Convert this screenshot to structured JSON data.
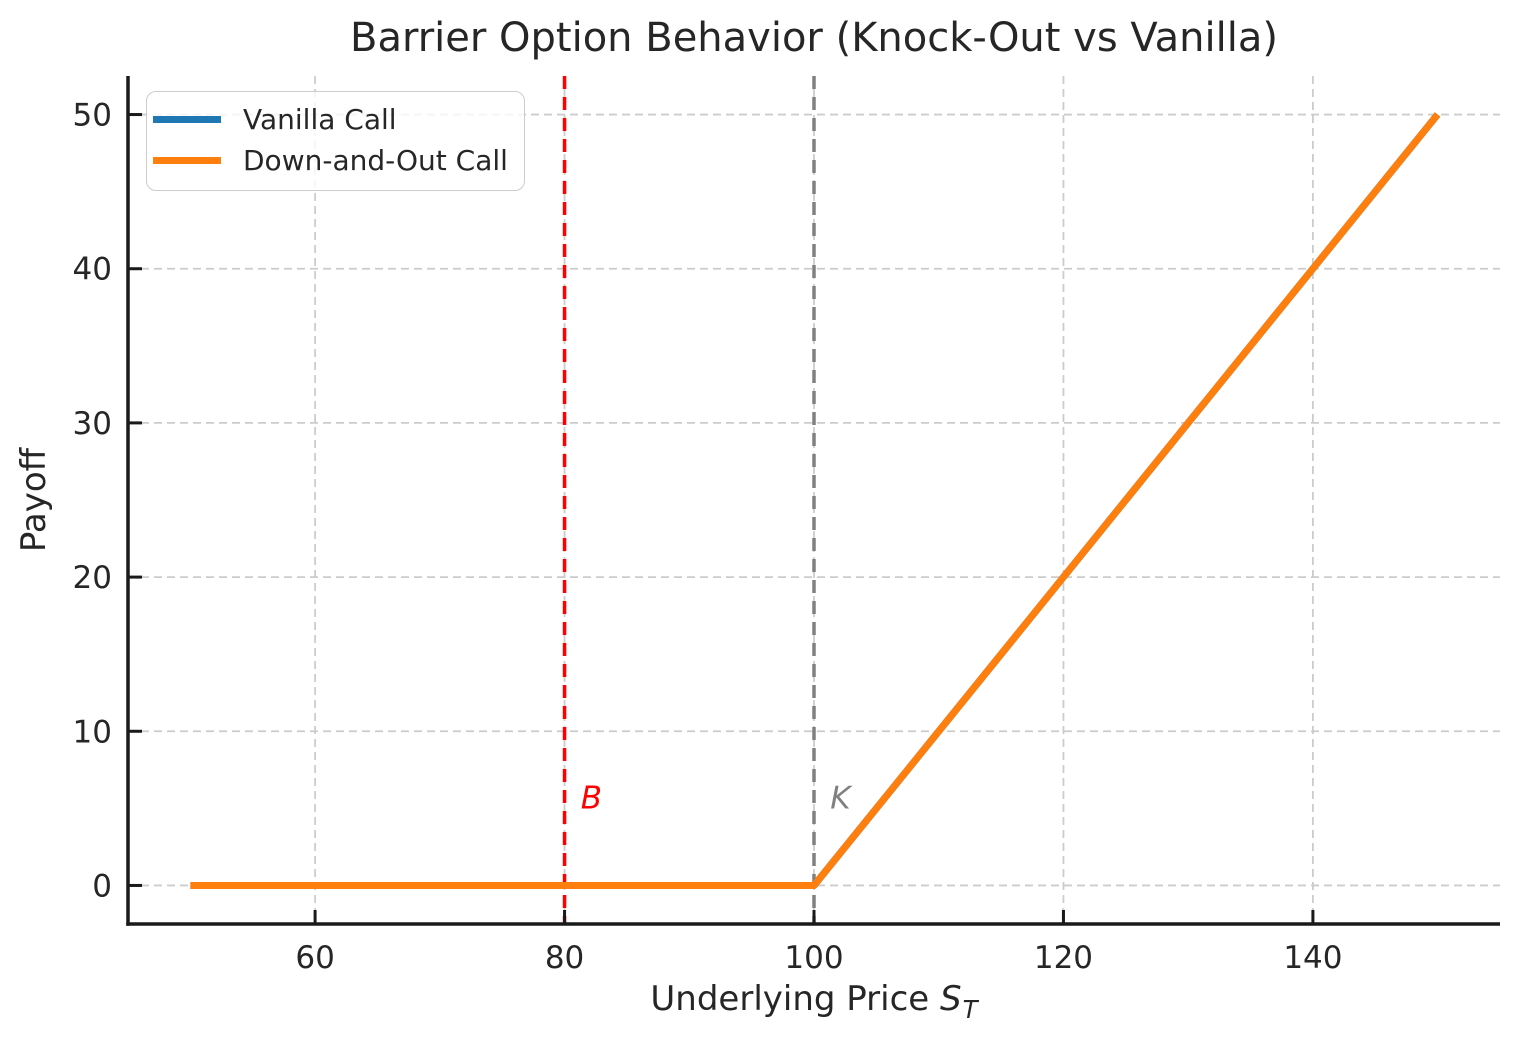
{
  "figure": {
    "title": "Barrier Option Behavior (Knock-Out vs Vanilla)",
    "xlabel": {
      "text": "Underlying Price",
      "symbol": "S",
      "subscript": "T"
    },
    "ylabel": "Payoff"
  },
  "legend": {
    "items": [
      {
        "label": "Vanilla Call",
        "color": "#1f77b4"
      },
      {
        "label": "Down-and-Out Call",
        "color": "#ff7f0e"
      }
    ]
  },
  "chart_data": {
    "type": "line",
    "title": "Barrier Option Behavior (Knock-Out vs Vanilla)",
    "xlabel": "Underlying Price S_T",
    "ylabel": "Payoff",
    "xlim": [
      45,
      155
    ],
    "ylim": [
      -2.5,
      52.5
    ],
    "x_ticks": [
      60,
      80,
      100,
      120,
      140
    ],
    "y_ticks": [
      0,
      10,
      20,
      30,
      40,
      50
    ],
    "grid": true,
    "grid_color": "#cccccc",
    "axis_color": "#1a1a1a",
    "tick_label_color": "#262626",
    "legend_position": "upper left",
    "series": [
      {
        "name": "Vanilla Call",
        "color": "#1f77b4",
        "x": [
          50,
          100,
          150
        ],
        "y": [
          0,
          0,
          50
        ]
      },
      {
        "name": "Down-and-Out Call",
        "color": "#ff7f0e",
        "x": [
          50,
          100,
          150
        ],
        "y": [
          0,
          0,
          50
        ]
      }
    ],
    "vlines": [
      {
        "x": 80,
        "label": "B",
        "color": "#ff0000",
        "style": "dashed"
      },
      {
        "x": 100,
        "label": "K",
        "color": "#808080",
        "style": "dashed"
      }
    ],
    "annotations": [
      {
        "text": "B",
        "x": 81.3,
        "y": 5,
        "color": "#ff0000",
        "italic": true
      },
      {
        "text": "K",
        "x": 101.3,
        "y": 5,
        "color": "#808080",
        "italic": true
      }
    ]
  }
}
